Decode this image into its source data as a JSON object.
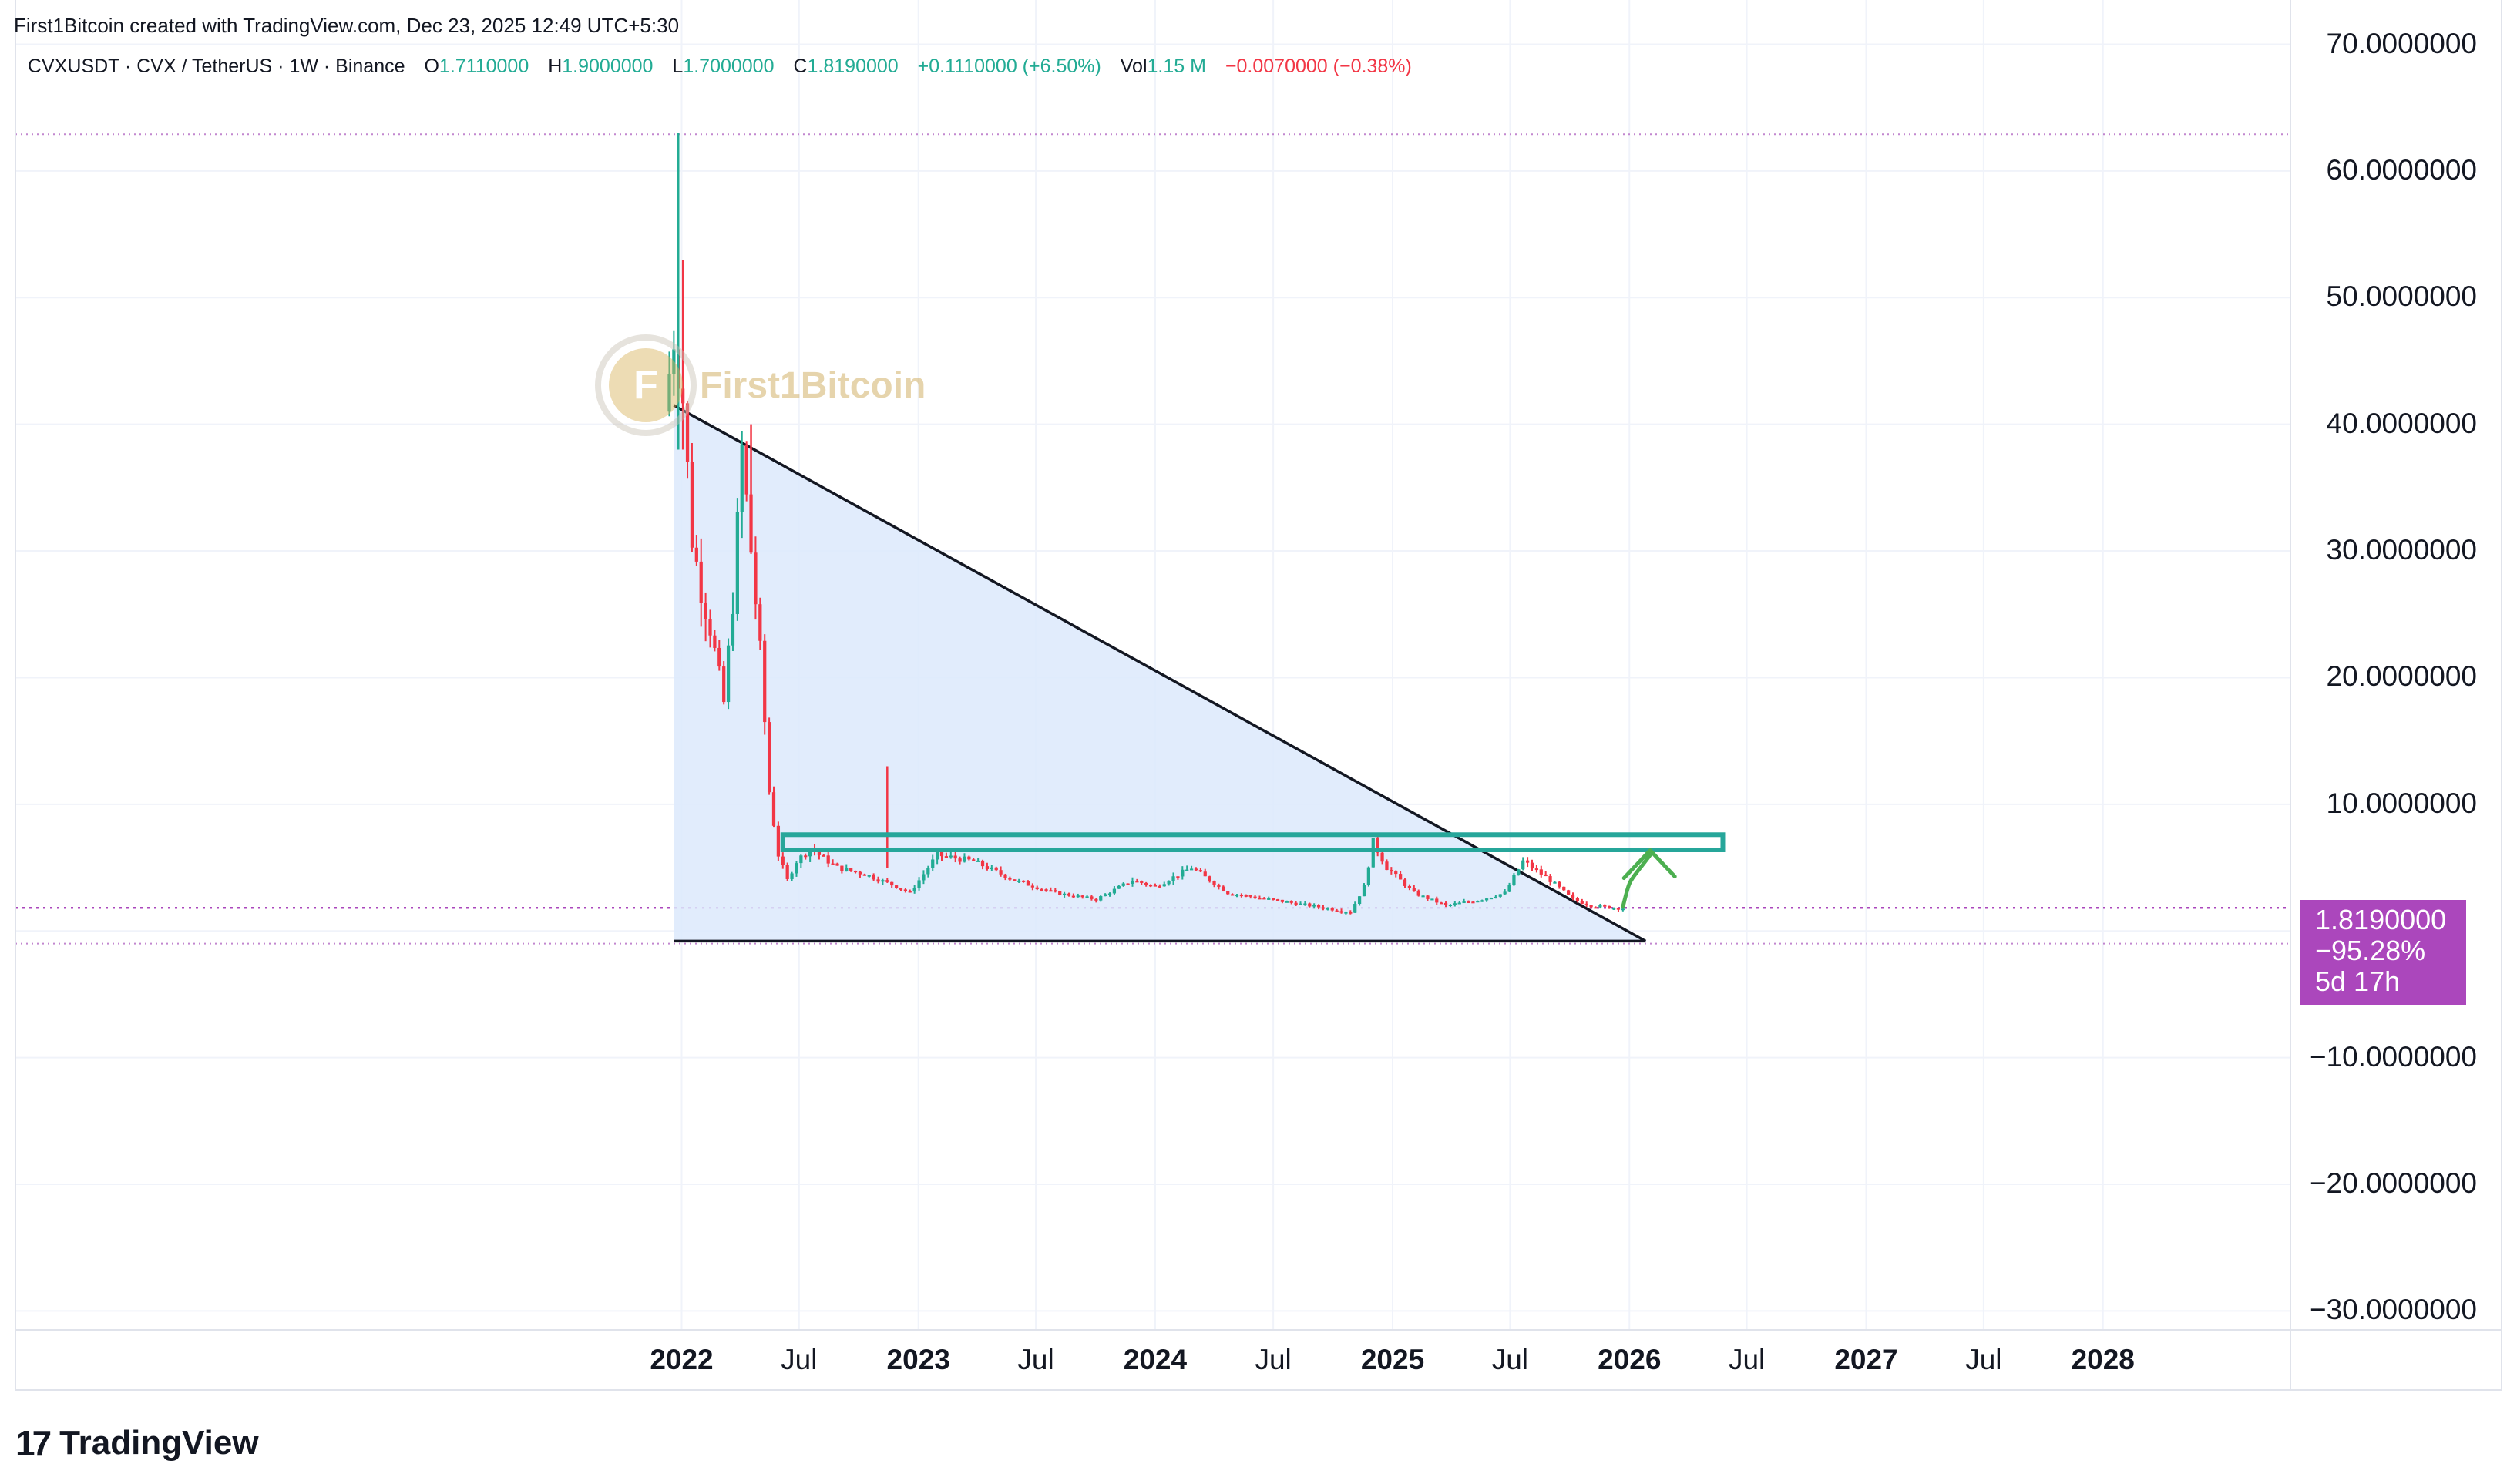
{
  "attribution": "First1Bitcoin created with TradingView.com, Dec 23, 2025 12:49 UTC+5:30",
  "legend": {
    "symbol": "CVXUSDT · CVX / TetherUS · 1W · Binance",
    "o_key": "O",
    "o_val": "1.7110000",
    "h_key": "H",
    "h_val": "1.9000000",
    "l_key": "L",
    "l_val": "1.7000000",
    "c_key": "C",
    "c_val": "1.8190000",
    "change": "+0.1110000 (+6.50%)",
    "vol_key": "Vol",
    "vol_val": "1.15 M",
    "vol_change": "−0.0070000 (−0.38%)"
  },
  "price_tag": {
    "price": "1.8190000",
    "change_pct": "−95.28%",
    "countdown": "5d 17h",
    "color": "#ab47bc"
  },
  "watermark": {
    "mark": "F",
    "text": "First1Bitcoin"
  },
  "branding": {
    "logo_mark": "17",
    "logo_text": "TradingView"
  },
  "colors": {
    "up": "#22ab94",
    "down": "#f23645",
    "triangle_fill": "#dce9fb",
    "box": "#26a69a",
    "arrow": "#4caf50",
    "price_line": "#ab47bc"
  },
  "chart_data": {
    "type": "candlestick",
    "symbol": "CVXUSDT",
    "interval": "1W",
    "y_ticks": [
      70,
      60,
      50,
      40,
      30,
      20,
      10,
      -10,
      -20,
      -30
    ],
    "y_tick_labels": [
      "70.0000000",
      "60.0000000",
      "50.0000000",
      "40.0000000",
      "30.0000000",
      "20.0000000",
      "10.0000000",
      "−10.0000000",
      "−20.0000000",
      "−30.0000000"
    ],
    "ylim": [
      -31.5,
      73.5
    ],
    "x_ticks": [
      {
        "label": "2022",
        "date": "2022-01-01",
        "year": true
      },
      {
        "label": "Jul",
        "date": "2022-07-01",
        "year": false
      },
      {
        "label": "2023",
        "date": "2023-01-01",
        "year": true
      },
      {
        "label": "Jul",
        "date": "2023-07-01",
        "year": false
      },
      {
        "label": "2024",
        "date": "2024-01-01",
        "year": true
      },
      {
        "label": "Jul",
        "date": "2024-07-01",
        "year": false
      },
      {
        "label": "2025",
        "date": "2025-01-01",
        "year": true
      },
      {
        "label": "Jul",
        "date": "2025-07-01",
        "year": false
      },
      {
        "label": "2026",
        "date": "2026-01-01",
        "year": true
      },
      {
        "label": "Jul",
        "date": "2026-07-01",
        "year": false
      },
      {
        "label": "2027",
        "date": "2027-01-01",
        "year": true
      },
      {
        "label": "Jul",
        "date": "2027-07-01",
        "year": false
      },
      {
        "label": "2028",
        "date": "2028-01-01",
        "year": true
      }
    ],
    "xlim": [
      "2019-03-11",
      "2028-10-16"
    ],
    "price_path": [
      [
        "2021-12-13",
        41
      ],
      [
        "2021-12-27",
        47
      ],
      [
        "2022-01-10",
        42
      ],
      [
        "2022-01-24",
        31
      ],
      [
        "2022-02-07",
        27
      ],
      [
        "2022-02-21",
        24
      ],
      [
        "2022-03-14",
        18
      ],
      [
        "2022-03-28",
        26
      ],
      [
        "2022-04-11",
        38
      ],
      [
        "2022-04-25",
        30
      ],
      [
        "2022-05-09",
        22
      ],
      [
        "2022-05-23",
        11
      ],
      [
        "2022-06-06",
        6
      ],
      [
        "2022-06-20",
        4
      ],
      [
        "2022-07-04",
        5.5
      ],
      [
        "2022-07-25",
        6.5
      ],
      [
        "2022-09-05",
        5
      ],
      [
        "2022-10-17",
        4.5
      ],
      [
        "2022-12-05",
        3.5
      ],
      [
        "2022-12-26",
        3
      ],
      [
        "2023-02-06",
        6
      ],
      [
        "2023-04-03",
        5.5
      ],
      [
        "2023-06-05",
        4
      ],
      [
        "2023-08-07",
        3
      ],
      [
        "2023-10-09",
        2.5
      ],
      [
        "2023-12-04",
        4
      ],
      [
        "2024-01-08",
        3.5
      ],
      [
        "2024-03-04",
        5
      ],
      [
        "2024-04-29",
        3
      ],
      [
        "2024-07-01",
        2.5
      ],
      [
        "2024-09-02",
        2
      ],
      [
        "2024-11-04",
        1.5
      ],
      [
        "2024-11-25",
        3.5
      ],
      [
        "2024-12-09",
        7
      ],
      [
        "2024-12-30",
        5
      ],
      [
        "2025-02-10",
        3
      ],
      [
        "2025-03-31",
        2
      ],
      [
        "2025-05-26",
        2.5
      ],
      [
        "2025-06-30",
        3
      ],
      [
        "2025-07-28",
        5.5
      ],
      [
        "2025-09-08",
        4
      ],
      [
        "2025-10-13",
        2.5
      ],
      [
        "2025-11-10",
        2
      ],
      [
        "2025-12-22",
        1.8
      ]
    ],
    "spikes": [
      {
        "date": "2021-12-27",
        "low": 38,
        "high": 63
      },
      {
        "date": "2022-01-03",
        "low": 38,
        "high": 53
      },
      {
        "date": "2022-04-18",
        "low": 30,
        "high": 40
      },
      {
        "date": "2022-11-14",
        "low": 5,
        "high": 13
      }
    ],
    "triangle": {
      "top": [
        "2021-12-20",
        41.5
      ],
      "bottom_left": [
        "2021-12-20",
        -0.8
      ],
      "bottom_right": [
        "2026-01-26",
        -0.8
      ]
    },
    "resistance_box": {
      "x0": "2022-06-06",
      "x1": "2026-05-25",
      "y0": 6.4,
      "y1": 7.6
    },
    "arrow": {
      "from": [
        "2025-12-22",
        1.9
      ],
      "to": [
        "2026-02-02",
        6.0
      ]
    },
    "lines": {
      "top_dotted": 62.9,
      "bottom_dotted": -1.0,
      "last_price_line": 1.819
    }
  }
}
